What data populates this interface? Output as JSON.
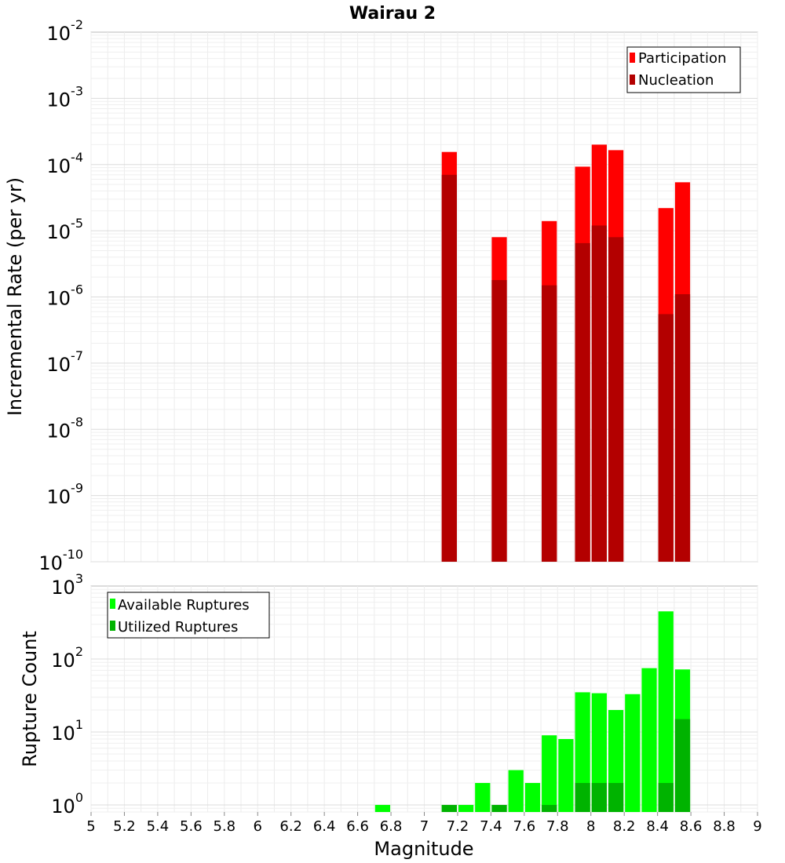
{
  "chart_data": [
    {
      "type": "bar",
      "title": "Wairau 2",
      "ylabel": "Incremental Rate (per yr)",
      "y_scale": "log",
      "ylim": [
        1e-10,
        0.01
      ],
      "y_tick_exponents": [
        -10,
        -9,
        -8,
        -7,
        -6,
        -5,
        -4,
        -3,
        -2
      ],
      "y_tick_base": "10",
      "legend": {
        "placement": "top-right",
        "entries": [
          "Participation",
          "Nucleation"
        ]
      },
      "colors": {
        "Participation": "#ff0000",
        "Nucleation": "#b30000"
      },
      "grid": true,
      "x": [
        7.15,
        7.45,
        7.75,
        7.95,
        8.05,
        8.15,
        8.45,
        8.55
      ],
      "series": [
        {
          "name": "Participation",
          "values": [
            0.000155,
            8e-06,
            1.4e-05,
            9.3e-05,
            0.0002,
            0.000165,
            2.2e-05,
            5.4e-05
          ]
        },
        {
          "name": "Nucleation",
          "values": [
            7e-05,
            1.8e-06,
            1.5e-06,
            6.5e-06,
            1.2e-05,
            8e-06,
            5.5e-07,
            1.1e-06
          ]
        }
      ]
    },
    {
      "type": "bar",
      "xlabel": "Magnitude",
      "ylabel": "Rupture Count",
      "y_scale": "log",
      "ylim": [
        0.8,
        1000
      ],
      "y_tick_exponents": [
        0,
        1,
        2,
        3
      ],
      "y_tick_base": "10",
      "xlim": [
        5,
        9
      ],
      "x_ticks": [
        "5",
        "5.2",
        "5.4",
        "5.6",
        "5.8",
        "6",
        "6.2",
        "6.4",
        "6.6",
        "6.8",
        "7",
        "7.2",
        "7.4",
        "7.6",
        "7.8",
        "8",
        "8.2",
        "8.4",
        "8.6",
        "8.8",
        "9"
      ],
      "legend": {
        "placement": "top-left",
        "entries": [
          "Available Ruptures",
          "Utilized Ruptures"
        ]
      },
      "colors": {
        "Available Ruptures": "#00ff00",
        "Utilized Ruptures": "#00b300"
      },
      "grid": true,
      "x": [
        6.75,
        7.15,
        7.25,
        7.35,
        7.45,
        7.55,
        7.65,
        7.75,
        7.85,
        7.95,
        8.05,
        8.15,
        8.25,
        8.35,
        8.45,
        8.55
      ],
      "series": [
        {
          "name": "Available Ruptures",
          "values": [
            1,
            1,
            1,
            2,
            1,
            3,
            2,
            9,
            8,
            35,
            34,
            20,
            33,
            75,
            450,
            72
          ]
        },
        {
          "name": "Utilized Ruptures",
          "values": [
            0,
            1,
            0,
            0,
            1,
            0,
            0,
            1,
            0,
            2,
            2,
            2,
            0,
            0,
            2,
            15
          ]
        }
      ]
    }
  ]
}
